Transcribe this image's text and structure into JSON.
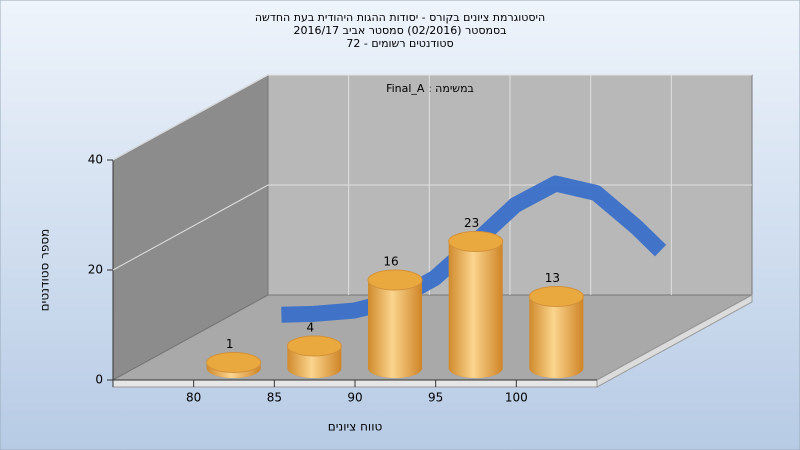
{
  "chart_data": {
    "type": "bar",
    "title": [
      "היסטוגרמת ציונים בקורס - יסודות ההגות היהודית בעת החדשה",
      "בסמסטר  (02/2016)  סמסטר אביב 2016/17",
      "סטודנטים רשומים - 72"
    ],
    "annotation": "Final_A : במשימה",
    "xlabel": "טווח ציונים",
    "ylabel": "מספר סטודנטים",
    "x": [
      80,
      85,
      90,
      95,
      100
    ],
    "values": [
      1,
      4,
      16,
      23,
      13
    ],
    "color": "#e8a846",
    "curve": {
      "color": "#3a70c8",
      "x": [
        78,
        80,
        82.5,
        85,
        87.5,
        90,
        92.5,
        95,
        97.5,
        100,
        101.5
      ],
      "values": [
        0.05,
        0.2,
        0.8,
        2.6,
        6.7,
        13.2,
        20,
        23.9,
        22.2,
        16,
        11.7
      ]
    },
    "xlim": [
      75,
      105
    ],
    "xticks": [
      80,
      85,
      90,
      95,
      100
    ],
    "ylim": [
      0,
      40
    ],
    "yticks": [
      0,
      20,
      40
    ],
    "grid": true
  }
}
